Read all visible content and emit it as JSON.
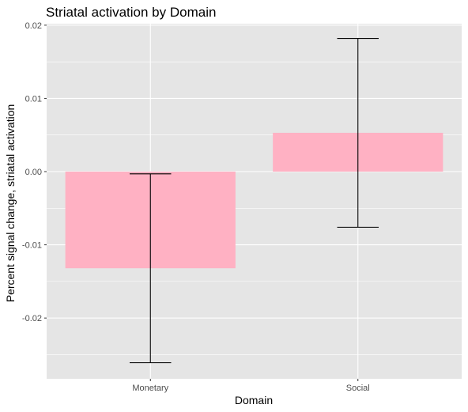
{
  "chart_data": {
    "type": "bar",
    "title": "Striatal activation by Domain",
    "xlabel": "Domain",
    "ylabel": "Percent signal change, striatal activation",
    "categories": [
      "Monetary",
      "Social"
    ],
    "values": [
      -0.0132,
      0.0053
    ],
    "error_bars": [
      {
        "low": -0.0261,
        "high": -0.0003
      },
      {
        "low": -0.0076,
        "high": 0.0182
      }
    ],
    "ylim": [
      -0.0283,
      0.0202
    ],
    "yticks": [
      0.02,
      0.01,
      0.0,
      -0.01,
      -0.02
    ],
    "ytick_labels": [
      "0.02",
      "0.01",
      "0.00",
      "-0.01",
      "-0.02"
    ],
    "grid": true,
    "colors": {
      "bar": "#ffb1c3",
      "panel": "#e5e5e5",
      "grid": "#ffffff",
      "errorbar": "#000000"
    }
  }
}
